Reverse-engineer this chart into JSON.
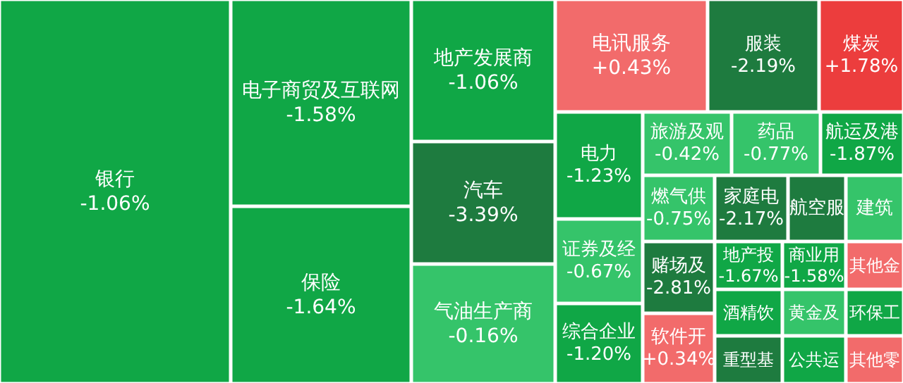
{
  "chart_data": {
    "type": "other",
    "categories": [
      "银行",
      "电子商贸及互联网",
      "保险",
      "地产发展商",
      "汽车",
      "气油生产商",
      "电讯服务",
      "服装",
      "煤炭",
      "电力",
      "旅游及观",
      "药品",
      "航运及港",
      "证券及经",
      "燃气供",
      "家庭电",
      "航空服",
      "建筑",
      "综合企业",
      "赌场及",
      "软件开",
      "地产投",
      "商业用",
      "其他金",
      "酒精饮",
      "黄金及",
      "环保工",
      "重型基",
      "公共运",
      "其他零"
    ],
    "values": [
      -1.06,
      -1.58,
      -1.64,
      -1.06,
      -3.39,
      -0.16,
      0.43,
      -2.19,
      1.78,
      -1.23,
      -0.42,
      -0.77,
      -1.87,
      -0.67,
      -0.75,
      -2.17,
      null,
      null,
      -1.2,
      -2.81,
      0.34,
      -1.67,
      -1.58,
      null,
      null,
      null,
      null,
      null,
      null,
      null
    ],
    "value_labels": [
      "-1.06%",
      "-1.58%",
      "-1.64%",
      "-1.06%",
      "-3.39%",
      "-0.16%",
      "+0.43%",
      "-2.19%",
      "+1.78%",
      "-1.23%",
      "-0.42%",
      "-0.77%",
      "-1.87%",
      "-0.67%",
      "-0.75%",
      "-2.17%",
      null,
      null,
      "-1.20%",
      "-2.81%",
      "+0.34%",
      "-1.67%",
      "-1.58%",
      null,
      null,
      null,
      null,
      null,
      null,
      null
    ],
    "colors": [
      "#10a746",
      "#10a746",
      "#10a746",
      "#10a746",
      "#1e7b3f",
      "#33c46a",
      "#f26b6b",
      "#1e7b3f",
      "#ec3d3d",
      "#10a746",
      "#35c46a",
      "#35c46a",
      "#10a746",
      "#35c46a",
      "#35c46a",
      "#1e7b3f",
      "#1e7b3f",
      "#35c46a",
      "#10a746",
      "#1e7b3f",
      "#f26b6b",
      "#10a746",
      "#10a746",
      "#f26b6b",
      "#10a746",
      "#35c46a",
      "#10a746",
      "#1e7b3f",
      "#10a746",
      "#f26b6b"
    ]
  }
}
